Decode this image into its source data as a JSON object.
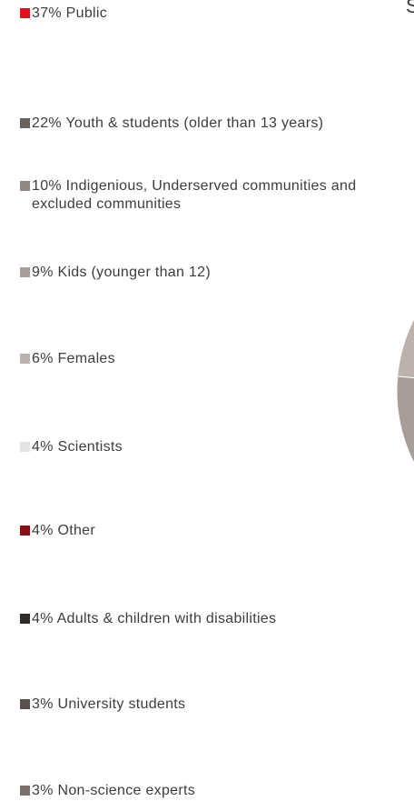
{
  "title_fragment": "S",
  "chart_data": {
    "type": "pie",
    "legend_position": "left",
    "slices": [
      {
        "label": "37% Public",
        "value": 37,
        "color": "#e3101f"
      },
      {
        "label": "22% Youth & students (older than 13 years)",
        "value": 22,
        "color": "#6a625c"
      },
      {
        "label": "10% Indigenious, Underserved communities and excluded communities",
        "value": 10,
        "color": "#918883"
      },
      {
        "label": "9% Kids (younger than 12)",
        "value": 9,
        "color": "#a89d97"
      },
      {
        "label": "6% Females",
        "value": 6,
        "color": "#bcb2ab"
      },
      {
        "label": "4% Scientists",
        "value": 4,
        "color": "#e6e2de"
      },
      {
        "label": "4% Other",
        "value": 4,
        "color": "#8b0d16"
      },
      {
        "label": "4% Adults & children with disabilities",
        "value": 4,
        "color": "#302b28"
      },
      {
        "label": "3% University students",
        "value": 3,
        "color": "#5a4f49"
      },
      {
        "label": "3% Non-science experts",
        "value": 3,
        "color": "#7a6f69"
      }
    ]
  }
}
